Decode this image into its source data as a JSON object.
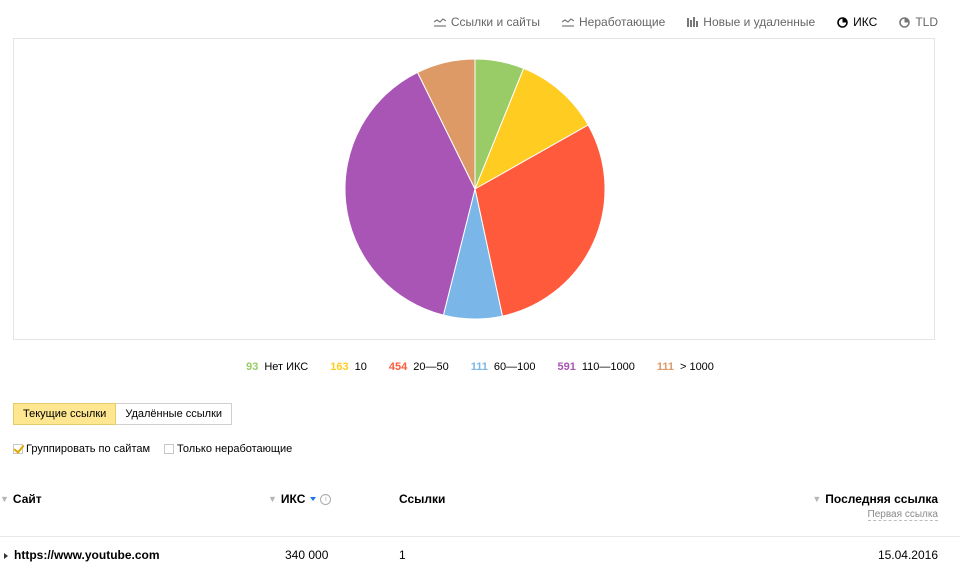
{
  "tabs": [
    {
      "label": "Ссылки и сайты",
      "icon": "line-chart-icon",
      "active": false
    },
    {
      "label": "Неработающие",
      "icon": "line-chart-icon",
      "active": false
    },
    {
      "label": "Новые и удаленные",
      "icon": "bar-chart-icon",
      "active": false
    },
    {
      "label": "ИКС",
      "icon": "pie-chart-icon",
      "active": true
    },
    {
      "label": "TLD",
      "icon": "pie-chart-icon",
      "active": false
    }
  ],
  "chart_data": {
    "type": "pie",
    "series": [
      {
        "name": "Нет ИКС",
        "count": "93",
        "value": 93,
        "color": "#99cc66"
      },
      {
        "name": "10",
        "count": "163",
        "value": 163,
        "color": "#ffcc22"
      },
      {
        "name": "20—50",
        "count": "454",
        "value": 454,
        "color": "#ff5a3c"
      },
      {
        "name": "60—100",
        "count": "111",
        "value": 111,
        "color": "#7ab6e8"
      },
      {
        "name": "110—1000",
        "count": "591",
        "value": 591,
        "color": "#a855b5"
      },
      {
        "name": "> 1000",
        "count": "111",
        "value": 111,
        "color": "#dd9966"
      }
    ]
  },
  "segments": {
    "current": "Текущие ссылки",
    "deleted": "Удалённые ссылки"
  },
  "filters": {
    "group_label": "Группировать по сайтам",
    "group_checked": true,
    "broken_label": "Только неработающие",
    "broken_checked": false
  },
  "table": {
    "col_site": "Сайт",
    "col_iks": "ИКС",
    "col_links": "Ссылки",
    "col_last": "Последняя ссылка",
    "col_first": "Первая ссылка",
    "rows": [
      {
        "site": "https://www.youtube.com",
        "iks": "340 000",
        "links": "1",
        "date": "15.04.2016"
      }
    ]
  }
}
